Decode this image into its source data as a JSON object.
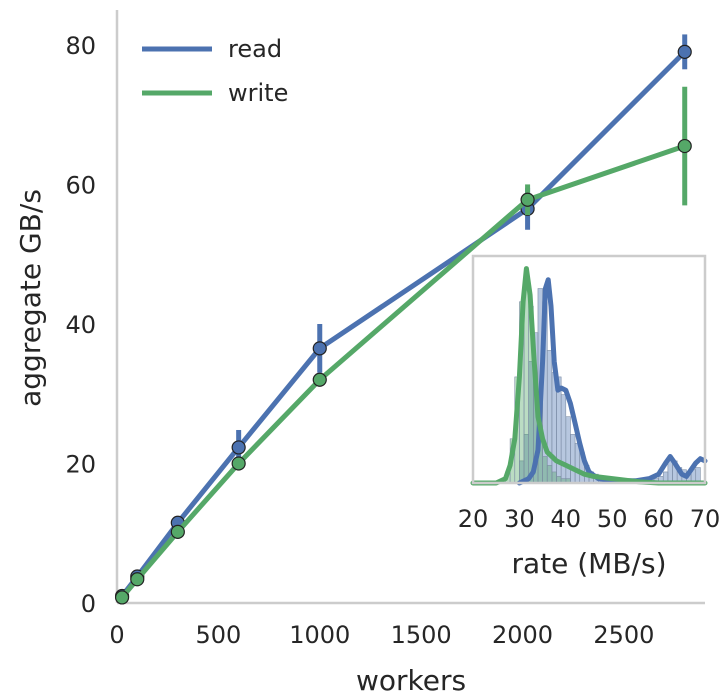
{
  "chart_data": [
    {
      "type": "line",
      "xlabel": "workers",
      "ylabel": "aggregate GB/s",
      "xlim": [
        0,
        2900
      ],
      "ylim": [
        0,
        85
      ],
      "xticks": [
        "0",
        "500",
        "1000",
        "1500",
        "2000",
        "2500"
      ],
      "yticks": [
        "0",
        "20",
        "40",
        "60",
        "80"
      ],
      "grid": false,
      "legend": "top-left",
      "series": [
        {
          "name": "read",
          "color": "#4c72b0",
          "points": [
            {
              "x": 25,
              "y": 1.0,
              "err": 0.3
            },
            {
              "x": 100,
              "y": 3.8,
              "err": 0.4
            },
            {
              "x": 300,
              "y": 11.5,
              "err": 0.5
            },
            {
              "x": 600,
              "y": 22.3,
              "err": 2.5
            },
            {
              "x": 1000,
              "y": 36.5,
              "err": 3.5
            },
            {
              "x": 2025,
              "y": 56.5,
              "err": 3.0
            },
            {
              "x": 2800,
              "y": 79.0,
              "err": 2.5
            }
          ]
        },
        {
          "name": "write",
          "color": "#55a868",
          "points": [
            {
              "x": 25,
              "y": 0.8,
              "err": 0.3
            },
            {
              "x": 100,
              "y": 3.4,
              "err": 0.4
            },
            {
              "x": 300,
              "y": 10.2,
              "err": 0.5
            },
            {
              "x": 600,
              "y": 20.0,
              "err": 0.6
            },
            {
              "x": 1000,
              "y": 32.0,
              "err": 0.6
            },
            {
              "x": 2025,
              "y": 57.8,
              "err": 2.2
            },
            {
              "x": 2800,
              "y": 65.5,
              "err": 8.5
            }
          ]
        }
      ]
    },
    {
      "type": "area",
      "subtype": "histogram-with-density",
      "xlabel": "rate (MB/s)",
      "ylabel": "",
      "xlim": [
        20,
        70
      ],
      "xticks": [
        "20",
        "30",
        "40",
        "50",
        "60",
        "70"
      ],
      "series": [
        {
          "name": "read",
          "color": "#4c72b0",
          "histogram": {
            "bin_start": 30,
            "bin_width": 1,
            "counts": [
              0.1,
              0.22,
              0.55,
              0.68,
              0.88,
              0.82,
              0.6,
              0.5,
              0.48,
              0.4,
              0.3,
              0.22,
              0.18,
              0.14,
              0.08,
              0.05,
              0.04,
              0.03,
              0.02,
              0.02,
              0.02,
              0.01,
              0.01,
              0.01,
              0.01,
              0.01,
              0.01,
              0.01,
              0.02,
              0.02,
              0.03,
              0.05,
              0.12,
              0.1,
              0.07,
              0.06,
              0.05,
              0.06,
              0.07
            ]
          },
          "density": [
            [
              30,
              0.0
            ],
            [
              32,
              0.02
            ],
            [
              33,
              0.05
            ],
            [
              34,
              0.15
            ],
            [
              35,
              0.55
            ],
            [
              35.6,
              0.88
            ],
            [
              36.2,
              0.92
            ],
            [
              36.8,
              0.8
            ],
            [
              37.5,
              0.55
            ],
            [
              38.3,
              0.42
            ],
            [
              39,
              0.43
            ],
            [
              40,
              0.42
            ],
            [
              41,
              0.36
            ],
            [
              42,
              0.27
            ],
            [
              43,
              0.18
            ],
            [
              44,
              0.1
            ],
            [
              45,
              0.05
            ],
            [
              47,
              0.02
            ],
            [
              50,
              0.01
            ],
            [
              55,
              0.01
            ],
            [
              58,
              0.02
            ],
            [
              60,
              0.04
            ],
            [
              61.5,
              0.09
            ],
            [
              62.5,
              0.12
            ],
            [
              63.5,
              0.09
            ],
            [
              65,
              0.04
            ],
            [
              66,
              0.03
            ],
            [
              67,
              0.06
            ],
            [
              68,
              0.09
            ],
            [
              69,
              0.11
            ],
            [
              70,
              0.1
            ]
          ]
        },
        {
          "name": "write",
          "color": "#55a868",
          "histogram": {
            "bin_start": 27,
            "bin_width": 1,
            "counts": [
              0.05,
              0.2,
              0.48,
              0.82,
              0.87,
              0.8,
              0.45,
              0.22,
              0.12,
              0.08,
              0.05,
              0.03,
              0.02,
              0.02
            ]
          },
          "density": [
            [
              20,
              0.0
            ],
            [
              25,
              0.0
            ],
            [
              27,
              0.02
            ],
            [
              28,
              0.08
            ],
            [
              29,
              0.2
            ],
            [
              30,
              0.48
            ],
            [
              30.8,
              0.82
            ],
            [
              31.5,
              0.97
            ],
            [
              32.3,
              0.85
            ],
            [
              33.2,
              0.55
            ],
            [
              34,
              0.3
            ],
            [
              35,
              0.2
            ],
            [
              36,
              0.14
            ],
            [
              37,
              0.12
            ],
            [
              38,
              0.1
            ],
            [
              40,
              0.08
            ],
            [
              42,
              0.06
            ],
            [
              44,
              0.04
            ],
            [
              46,
              0.03
            ],
            [
              50,
              0.02
            ],
            [
              54,
              0.01
            ],
            [
              56,
              0.005
            ],
            [
              60,
              0.0
            ],
            [
              70,
              0.0
            ]
          ]
        }
      ]
    }
  ]
}
